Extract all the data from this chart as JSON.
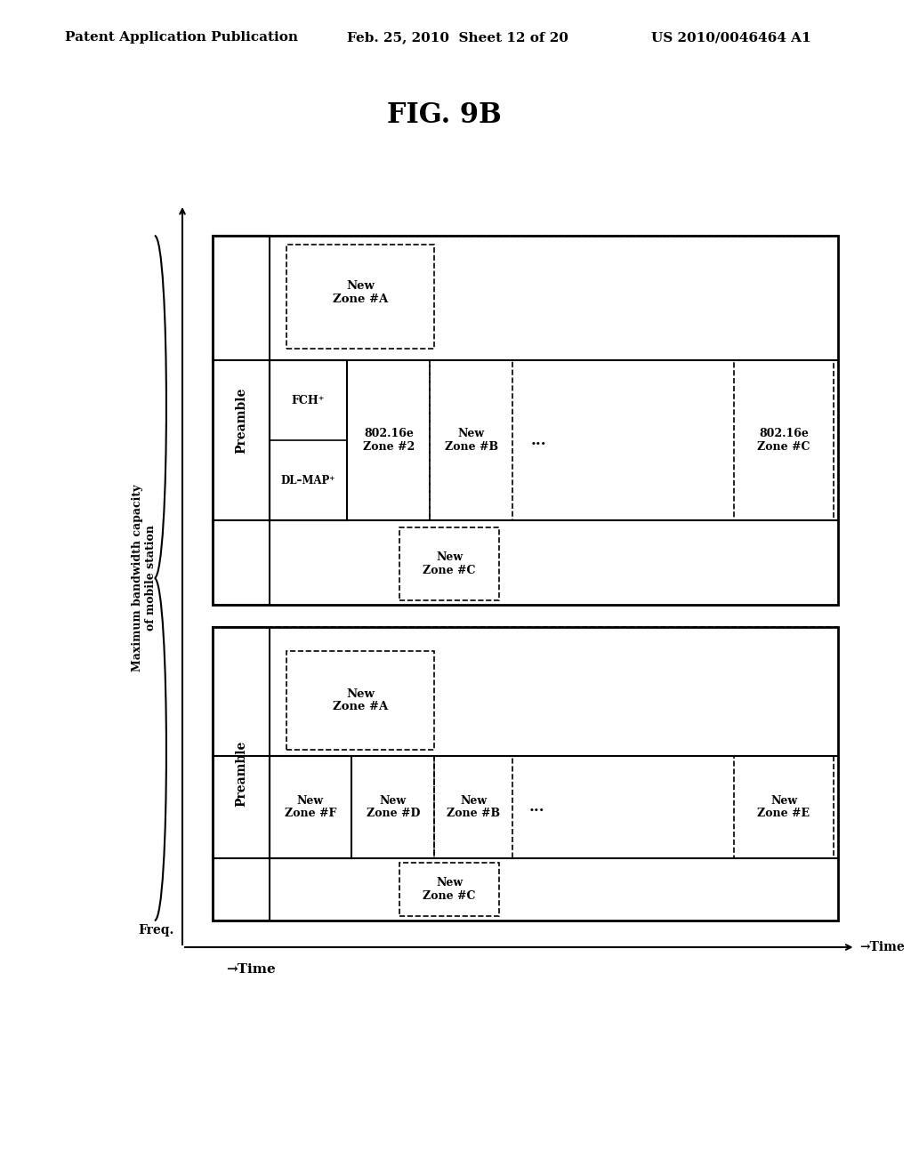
{
  "title": "FIG. 9B",
  "header_left": "Patent Application Publication",
  "header_center": "Feb. 25, 2010  Sheet 12 of 20",
  "header_right": "US 2010/0046464 A1",
  "bg_color": "#ffffff",
  "fig_title_fontsize": 22,
  "header_fontsize": 11
}
